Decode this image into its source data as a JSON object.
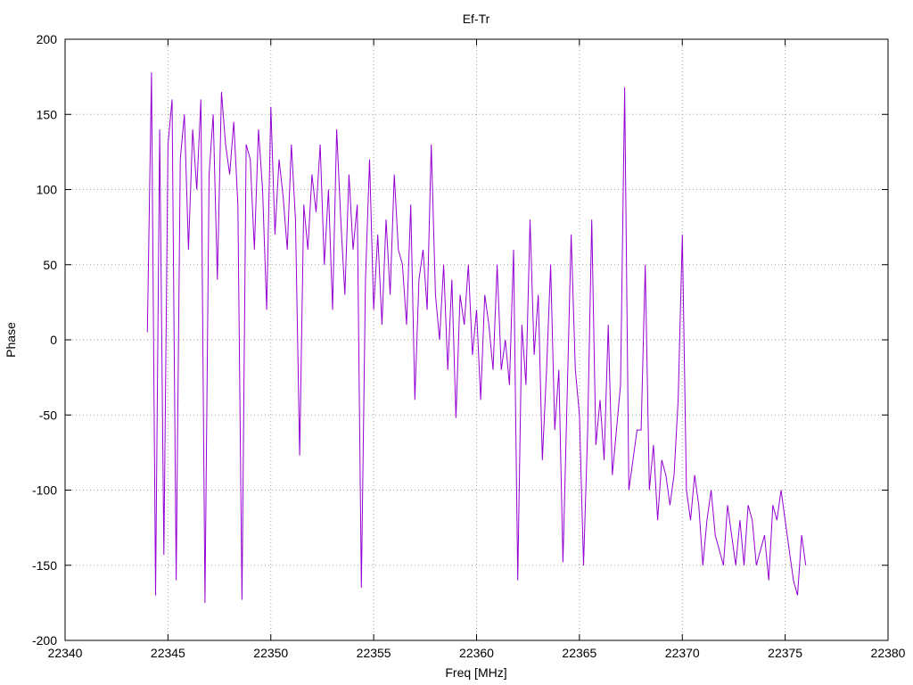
{
  "chart_data": {
    "type": "line",
    "title": "Ef-Tr",
    "xlabel": "Freq [MHz]",
    "ylabel": "Phase",
    "xlim": [
      22340,
      22380
    ],
    "ylim": [
      -200,
      200
    ],
    "x_ticks": [
      22340,
      22345,
      22350,
      22355,
      22360,
      22365,
      22370,
      22375,
      22380
    ],
    "y_ticks": [
      -200,
      -150,
      -100,
      -50,
      0,
      50,
      100,
      150,
      200
    ],
    "grid": true,
    "legend": "none",
    "series": [
      {
        "color": "#9400d3",
        "x": [
          22344.0,
          22344.2,
          22344.4,
          22344.6,
          22344.8,
          22345.0,
          22345.2,
          22345.4,
          22345.6,
          22345.8,
          22346.0,
          22346.2,
          22346.4,
          22346.6,
          22346.8,
          22347.0,
          22347.2,
          22347.4,
          22347.6,
          22347.8,
          22348.0,
          22348.2,
          22348.4,
          22348.6,
          22348.8,
          22349.0,
          22349.2,
          22349.4,
          22349.6,
          22349.8,
          22350.0,
          22350.2,
          22350.4,
          22350.6,
          22350.8,
          22351.0,
          22351.2,
          22351.4,
          22351.6,
          22351.8,
          22352.0,
          22352.2,
          22352.4,
          22352.6,
          22352.8,
          22353.0,
          22353.2,
          22353.4,
          22353.6,
          22353.8,
          22354.0,
          22354.2,
          22354.4,
          22354.6,
          22354.8,
          22355.0,
          22355.2,
          22355.4,
          22355.6,
          22355.8,
          22356.0,
          22356.2,
          22356.4,
          22356.6,
          22356.8,
          22357.0,
          22357.2,
          22357.4,
          22357.6,
          22357.8,
          22358.0,
          22358.2,
          22358.4,
          22358.6,
          22358.8,
          22359.0,
          22359.2,
          22359.4,
          22359.6,
          22359.8,
          22360.0,
          22360.2,
          22360.4,
          22360.6,
          22360.8,
          22361.0,
          22361.2,
          22361.4,
          22361.6,
          22361.8,
          22362.0,
          22362.2,
          22362.4,
          22362.6,
          22362.8,
          22363.0,
          22363.2,
          22363.4,
          22363.6,
          22363.8,
          22364.0,
          22364.2,
          22364.4,
          22364.6,
          22364.8,
          22365.0,
          22365.2,
          22365.4,
          22365.6,
          22365.8,
          22366.0,
          22366.2,
          22366.4,
          22366.6,
          22366.8,
          22367.0,
          22367.2,
          22367.4,
          22367.6,
          22367.8,
          22368.0,
          22368.2,
          22368.4,
          22368.6,
          22368.8,
          22369.0,
          22369.2,
          22369.4,
          22369.6,
          22369.8,
          22370.0,
          22370.2,
          22370.4,
          22370.6,
          22370.8,
          22371.0,
          22371.2,
          22371.4,
          22371.6,
          22371.8,
          22372.0,
          22372.2,
          22372.4,
          22372.6,
          22372.8,
          22373.0,
          22373.2,
          22373.4,
          22373.6,
          22373.8,
          22374.0,
          22374.2,
          22374.4,
          22374.6,
          22374.8,
          22375.0,
          22375.2,
          22375.4,
          22375.6,
          22375.8,
          22376.0
        ],
        "y": [
          5,
          178,
          -170,
          140,
          -143,
          130,
          160,
          -160,
          120,
          150,
          60,
          140,
          100,
          160,
          -175,
          110,
          150,
          40,
          165,
          130,
          110,
          145,
          90,
          -173,
          130,
          120,
          60,
          140,
          100,
          20,
          155,
          70,
          120,
          95,
          60,
          130,
          80,
          -77,
          90,
          60,
          110,
          85,
          130,
          50,
          100,
          20,
          140,
          80,
          30,
          110,
          60,
          90,
          -165,
          40,
          120,
          20,
          70,
          10,
          80,
          30,
          110,
          60,
          50,
          10,
          90,
          -40,
          40,
          60,
          20,
          130,
          30,
          0,
          50,
          -20,
          40,
          -52,
          30,
          10,
          50,
          -10,
          20,
          -40,
          30,
          10,
          -20,
          50,
          -20,
          0,
          -30,
          60,
          -160,
          10,
          -30,
          80,
          -10,
          30,
          -80,
          -20,
          50,
          -60,
          -20,
          -148,
          -40,
          70,
          -20,
          -50,
          -150,
          -60,
          80,
          -70,
          -40,
          -80,
          10,
          -90,
          -60,
          -30,
          168,
          -100,
          -80,
          -60,
          -60,
          50,
          -100,
          -70,
          -120,
          -80,
          -90,
          -110,
          -90,
          -40,
          70,
          -100,
          -120,
          -90,
          -110,
          -150,
          -120,
          -100,
          -130,
          -140,
          -150,
          -110,
          -130,
          -150,
          -120,
          -150,
          -110,
          -120,
          -150,
          -140,
          -130,
          -160,
          -110,
          -120,
          -100,
          -120,
          -140,
          -160,
          -170,
          -130,
          -150
        ],
        "y_note": ""
      }
    ]
  }
}
